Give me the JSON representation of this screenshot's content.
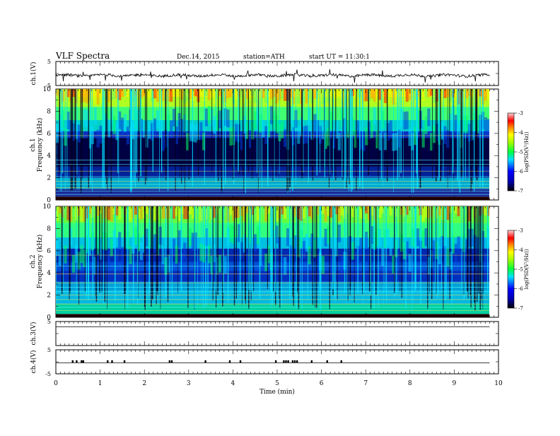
{
  "header": {
    "title": "VLF Spectra",
    "date": "Dec.14, 2015",
    "station": "station=ATH",
    "start": "start  UT =   11:30:1"
  },
  "chart_data": {
    "type": "heatmap",
    "title": "VLF Spectra",
    "xlabel": "Time (min)",
    "xlim": [
      0,
      10
    ],
    "x_ticks": [
      "0",
      "1",
      "2",
      "3",
      "4",
      "5",
      "6",
      "7",
      "8",
      "9",
      "10"
    ],
    "data_end_min": 9.8,
    "panels": [
      {
        "id": "ch1-waveform",
        "ylabel": "ch.1(V)",
        "ylim": [
          -5,
          5
        ],
        "y_ticks": [
          "5",
          "-5"
        ]
      },
      {
        "id": "ch1-spectrogram",
        "ylabel": "ch.1\nFrequency (kHz)",
        "ylim": [
          0,
          10
        ],
        "y_ticks": [
          "0",
          "2",
          "4",
          "6",
          "8",
          "10"
        ],
        "colorbar": {
          "label": "log(PSD(V²/Hz))",
          "range": [
            -7,
            -3
          ],
          "ticks": [
            "-7",
            "-6",
            "-5",
            "-4",
            "-3"
          ]
        }
      },
      {
        "id": "ch2-spectrogram",
        "ylabel": "ch.2\nFrequency (kHz)",
        "ylim": [
          0,
          10
        ],
        "y_ticks": [
          "0",
          "2",
          "4",
          "6",
          "8",
          "10"
        ],
        "colorbar": {
          "label": "log(PSD(V²/Hz))",
          "range": [
            -7,
            -3
          ],
          "ticks": [
            "-7",
            "-6",
            "-5",
            "-4",
            "-3"
          ]
        }
      },
      {
        "id": "ch3-waveform",
        "ylabel": "ch.3(V)",
        "ylim": [
          -5,
          5
        ],
        "y_ticks": [
          "5"
        ]
      },
      {
        "id": "ch4-waveform",
        "ylabel": "ch.4(V)",
        "ylim": [
          -5,
          5
        ],
        "y_ticks": [
          "5",
          "-5"
        ]
      }
    ],
    "ch4_pulses_min": [
      0.38,
      0.47,
      0.58,
      0.62,
      1.17,
      1.27,
      1.55,
      2.57,
      2.62,
      3.38,
      3.93,
      4.17,
      4.97,
      5.15,
      5.2,
      5.25,
      5.35,
      5.4,
      5.45,
      5.78,
      6.13,
      6.45
    ]
  }
}
